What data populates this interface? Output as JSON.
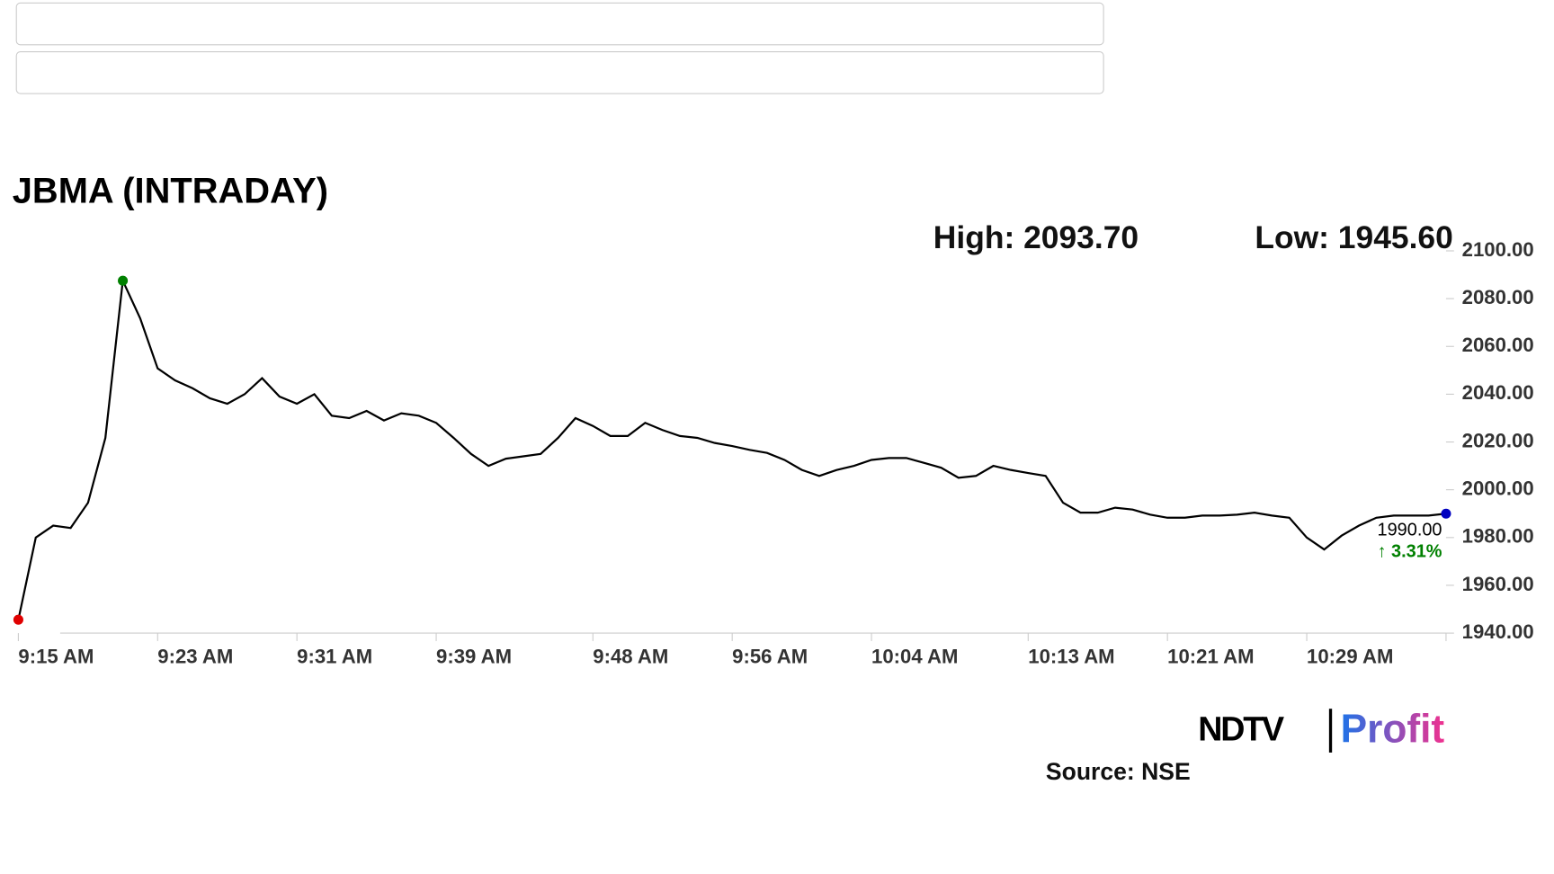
{
  "chart_data": {
    "type": "line",
    "title": "JBMA (INTRADAY)",
    "high_label": "High: 2093.70",
    "low_label": "Low: 1945.60",
    "last_label": "1990.00",
    "change_label": "↑ 3.31%",
    "source": "Source: NSE",
    "brand": [
      "NDTV",
      "Profit"
    ],
    "x": [
      "9:15 AM",
      "9:16 AM",
      "9:17 AM",
      "9:18 AM",
      "9:19 AM",
      "9:20 AM",
      "9:21 AM",
      "9:22 AM",
      "9:23 AM",
      "9:24 AM",
      "9:25 AM",
      "9:26 AM",
      "9:27 AM",
      "9:28 AM",
      "9:29 AM",
      "9:30 AM",
      "9:31 AM",
      "9:32 AM",
      "9:33 AM",
      "9:34 AM",
      "9:35 AM",
      "9:36 AM",
      "9:37 AM",
      "9:38 AM",
      "9:39 AM",
      "9:40 AM",
      "9:41 AM",
      "9:42 AM",
      "9:43 AM",
      "9:44 AM",
      "9:45 AM",
      "9:46 AM",
      "9:47 AM",
      "9:48 AM",
      "9:49 AM",
      "9:50 AM",
      "9:51 AM",
      "9:52 AM",
      "9:53 AM",
      "9:54 AM",
      "9:55 AM",
      "9:56 AM",
      "9:57 AM",
      "9:58 AM",
      "9:59 AM",
      "10:00 AM",
      "10:01 AM",
      "10:02 AM",
      "10:03 AM",
      "10:04 AM",
      "10:05 AM",
      "10:06 AM",
      "10:07 AM",
      "10:08 AM",
      "10:09 AM",
      "10:10 AM",
      "10:11 AM",
      "10:12 AM",
      "10:13 AM",
      "10:14 AM",
      "10:15 AM",
      "10:16 AM",
      "10:17 AM",
      "10:18 AM",
      "10:19 AM",
      "10:20 AM",
      "10:21 AM",
      "10:22 AM",
      "10:23 AM",
      "10:24 AM",
      "10:25 AM",
      "10:26 AM",
      "10:27 AM",
      "10:28 AM",
      "10:29 AM",
      "10:30 AM",
      "10:31 AM",
      "10:32 AM",
      "10:33 AM",
      "10:34 AM",
      "10:35 AM",
      "10:36 AM",
      "10:37 AM"
    ],
    "values": [
      1945.6,
      1980,
      1985,
      1984,
      1994.6,
      2021.7,
      2087.5,
      2071.7,
      2050.8,
      2045.8,
      2042.5,
      2038.3,
      2036,
      2040,
      2046.7,
      2039,
      2036,
      2040,
      2031,
      2030,
      2033,
      2029,
      2032,
      2031,
      2028,
      2021.7,
      2015,
      2010,
      2013,
      2014,
      2015,
      2021.7,
      2030,
      2026.7,
      2022.5,
      2022.5,
      2028,
      2025,
      2022.5,
      2021.7,
      2019.6,
      2018.3,
      2016.7,
      2015.4,
      2012.5,
      2008.3,
      2005.8,
      2008.3,
      2010,
      2012.5,
      2013.3,
      2013.3,
      2011.3,
      2009.2,
      2005,
      2005.8,
      2010,
      2008.3,
      2007,
      2005.8,
      1994.6,
      1990.4,
      1990.4,
      1992.5,
      1991.7,
      1989.6,
      1988.3,
      1988.3,
      1989.2,
      1989.2,
      1989.6,
      1990.4,
      1989.2,
      1988.3,
      1980,
      1975,
      1980.8,
      1985,
      1988.3,
      1989.2,
      1989.2,
      1989.2,
      1990
    ],
    "line_color": "#000000",
    "start_color": "#e00000",
    "high_color": "#008000",
    "last_color": "#0000c0",
    "change_color": "#008000",
    "xlim": [
      "9:15 AM",
      "10:37 AM"
    ],
    "xticks": [
      "9:15 AM",
      "9:23 AM",
      "9:31 AM",
      "9:39 AM",
      "9:48 AM",
      "9:56 AM",
      "10:04 AM",
      "10:13 AM",
      "10:21 AM",
      "10:29 AM"
    ],
    "ylim": [
      1940,
      2100
    ],
    "yticks": [
      {
        "value": 2100,
        "label": "2100.00"
      },
      {
        "value": 2080,
        "label": "2080.00"
      },
      {
        "value": 2060,
        "label": "2060.00"
      },
      {
        "value": 2040,
        "label": "2040.00"
      },
      {
        "value": 2020,
        "label": "2020.00"
      },
      {
        "value": 2000,
        "label": "2000.00"
      },
      {
        "value": 1980,
        "label": "1980.00"
      },
      {
        "value": 1960,
        "label": "1960.00"
      },
      {
        "value": 1940,
        "label": "1940.00"
      }
    ]
  }
}
